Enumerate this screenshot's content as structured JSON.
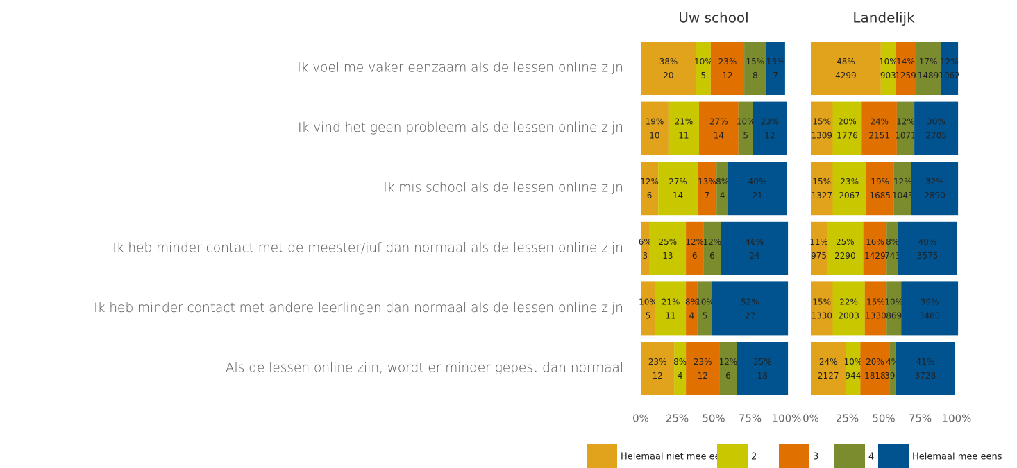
{
  "chart_data": {
    "type": "bar",
    "orientation": "horizontal",
    "stacked": true,
    "categories": [
      "Ik voel me vaker eenzaam als de lessen online zijn",
      "Ik vind het geen probleem als de lessen online zijn",
      "Ik mis school als de lessen online zijn",
      "Ik heb minder contact met de meester/juf dan normaal als de lessen online zijn",
      "Ik heb minder contact met andere leerlingen dan normaal als de lessen online zijn",
      "Als de lessen online zijn, wordt er minder gepest dan normaal"
    ],
    "xlim": [
      0,
      100
    ],
    "xticks": [
      {
        "value": 0,
        "label": "0%"
      },
      {
        "value": 25,
        "label": "25%"
      },
      {
        "value": 50,
        "label": "50%"
      },
      {
        "value": 75,
        "label": "75%"
      },
      {
        "value": 100,
        "label": "100%"
      }
    ],
    "legend": [
      {
        "name": "Helemaal niet mee eens",
        "color": "#e0a31b"
      },
      {
        "name": "2",
        "color": "#c9c800"
      },
      {
        "name": "3",
        "color": "#e07000"
      },
      {
        "name": "4",
        "color": "#7a8c2e"
      },
      {
        "name": "Helemaal mee eens",
        "color": "#00538f"
      }
    ],
    "panels": [
      {
        "title": "Uw school",
        "series": [
          {
            "values": [
              38,
              19,
              12,
              6,
              10,
              23
            ],
            "value_labels": [
              "38%",
              "19%",
              "12%",
              "6%",
              "10%",
              "23%"
            ],
            "counts": [
              20,
              10,
              6,
              3,
              5,
              12
            ]
          },
          {
            "values": [
              10,
              21,
              27,
              25,
              21,
              8
            ],
            "value_labels": [
              "10%",
              "21%",
              "27%",
              "25%",
              "21%",
              "8%"
            ],
            "counts": [
              5,
              11,
              14,
              13,
              11,
              4
            ]
          },
          {
            "values": [
              23,
              27,
              13,
              12,
              8,
              23
            ],
            "value_labels": [
              "23%",
              "27%",
              "13%",
              "12%",
              "8%",
              "23%"
            ],
            "counts": [
              12,
              14,
              7,
              6,
              4,
              12
            ]
          },
          {
            "values": [
              15,
              10,
              8,
              12,
              10,
              12
            ],
            "value_labels": [
              "15%",
              "10%",
              "8%",
              "12%",
              "10%",
              "12%"
            ],
            "counts": [
              8,
              5,
              4,
              6,
              5,
              6
            ]
          },
          {
            "values": [
              13,
              23,
              40,
              46,
              52,
              35
            ],
            "value_labels": [
              "13%",
              "23%",
              "40%",
              "46%",
              "52%",
              "35%"
            ],
            "counts": [
              7,
              12,
              21,
              24,
              27,
              18
            ]
          }
        ]
      },
      {
        "title": "Landelijk",
        "series": [
          {
            "values": [
              48,
              15,
              15,
              11,
              15,
              24
            ],
            "value_labels": [
              "48%",
              "15%",
              "15%",
              "11%",
              "15%",
              "24%"
            ],
            "counts": [
              4299,
              1309,
              1327,
              975,
              1330,
              2127
            ]
          },
          {
            "values": [
              10,
              20,
              23,
              25,
              22,
              10
            ],
            "value_labels": [
              "10%",
              "20%",
              "23%",
              "25%",
              "22%",
              "10%"
            ],
            "counts": [
              903,
              1776,
              2067,
              2290,
              2003,
              944
            ]
          },
          {
            "values": [
              14,
              24,
              19,
              16,
              15,
              20
            ],
            "value_labels": [
              "14%",
              "24%",
              "19%",
              "16%",
              "15%",
              "20%"
            ],
            "counts": [
              1259,
              2151,
              1685,
              1429,
              1330,
              1818
            ]
          },
          {
            "values": [
              17,
              12,
              12,
              8,
              10,
              4
            ],
            "value_labels": [
              "17%",
              "12%",
              "12%",
              "8%",
              "10%",
              "4%"
            ],
            "counts": [
              1489,
              1071,
              1043,
              743,
              869,
              395
            ]
          },
          {
            "values": [
              12,
              30,
              32,
              40,
              39,
              41
            ],
            "value_labels": [
              "12%",
              "30%",
              "32%",
              "40%",
              "39%",
              "41%"
            ],
            "counts": [
              1062,
              2705,
              2890,
              3575,
              3480,
              3728
            ]
          }
        ]
      }
    ]
  }
}
